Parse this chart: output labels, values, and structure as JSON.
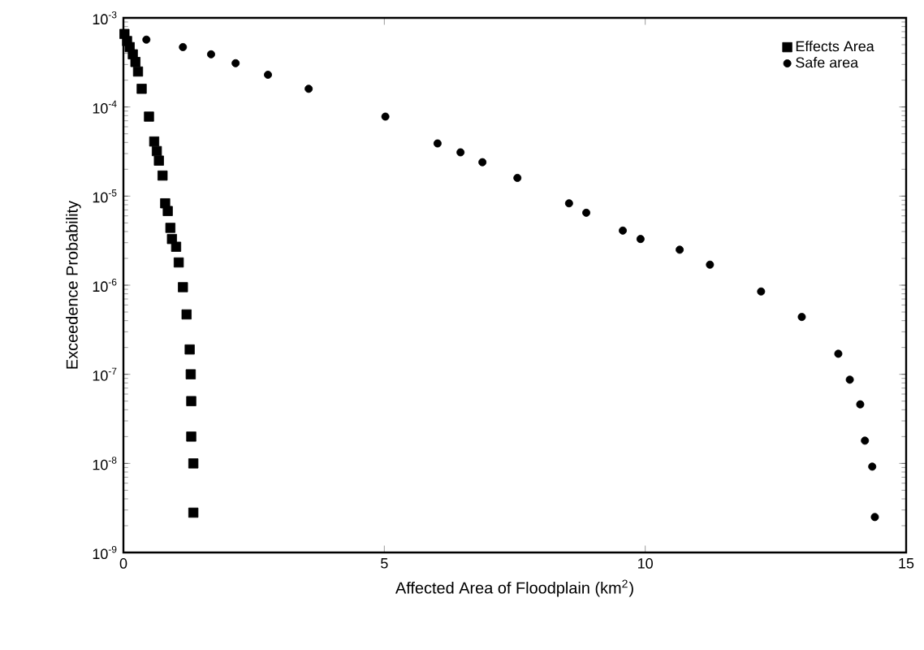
{
  "chart_data": {
    "type": "scatter",
    "xlabel": "Affected Area of Floodplain (km$^{2}$)",
    "ylabel": "Exceedence Probability",
    "log": "y",
    "grid": false,
    "legend": "top right",
    "xlim": [
      0,
      15
    ],
    "xticks": [
      0,
      5,
      10,
      15
    ],
    "ylim": [
      1e-09,
      0.001
    ],
    "yticks": [
      {
        "value": 1e-09,
        "label": "10$^{-9}$"
      },
      {
        "value": 1e-08,
        "label": "10$^{-8}$"
      },
      {
        "value": 1e-07,
        "label": "10$^{-7}$"
      },
      {
        "value": 1e-06,
        "label": "10$^{-6}$"
      },
      {
        "value": 1e-05,
        "label": "10$^{-5}$"
      },
      {
        "value": 0.0001,
        "label": "10$^{-4}$"
      },
      {
        "value": 0.001,
        "label": "10$^{-3}$"
      }
    ],
    "series": [
      {
        "name": "Effects Area",
        "color": "#000000",
        "marker": "square",
        "x": [
          0.02,
          0.07,
          0.12,
          0.18,
          0.23,
          0.28,
          0.35,
          0.49,
          0.59,
          0.64,
          0.68,
          0.75,
          0.8,
          0.85,
          0.9,
          0.93,
          1.01,
          1.06,
          1.14,
          1.21,
          1.27,
          1.29,
          1.3,
          1.3,
          1.34,
          1.34
        ],
        "values": [
          0.00066,
          0.00055,
          0.00047,
          0.00039,
          0.00032,
          0.00025,
          0.00016,
          7.8e-05,
          4.1e-05,
          3.2e-05,
          2.5e-05,
          1.7e-05,
          8.3e-06,
          6.8e-06,
          4.4e-06,
          3.3e-06,
          2.7e-06,
          1.8e-06,
          9.5e-07,
          4.7e-07,
          1.9e-07,
          1e-07,
          5e-08,
          2e-08,
          1e-08,
          2.8e-09
        ]
      },
      {
        "name": "Safe area",
        "color": "#000000",
        "marker": "circle",
        "x": [
          0.44,
          1.14,
          1.68,
          2.15,
          2.77,
          3.55,
          5.02,
          6.02,
          6.46,
          6.88,
          7.55,
          8.54,
          8.87,
          9.57,
          9.91,
          10.66,
          11.24,
          12.22,
          13.0,
          13.7,
          13.92,
          14.12,
          14.21,
          14.35,
          14.4
        ],
        "values": [
          0.00057,
          0.00047,
          0.00039,
          0.00031,
          0.00023,
          0.00016,
          7.8e-05,
          3.9e-05,
          3.1e-05,
          2.4e-05,
          1.6e-05,
          8.3e-06,
          6.5e-06,
          4.1e-06,
          3.3e-06,
          2.5e-06,
          1.7e-06,
          8.5e-07,
          4.4e-07,
          1.7e-07,
          8.7e-08,
          4.6e-08,
          1.8e-08,
          9.2e-09,
          2.5e-09
        ]
      }
    ]
  }
}
